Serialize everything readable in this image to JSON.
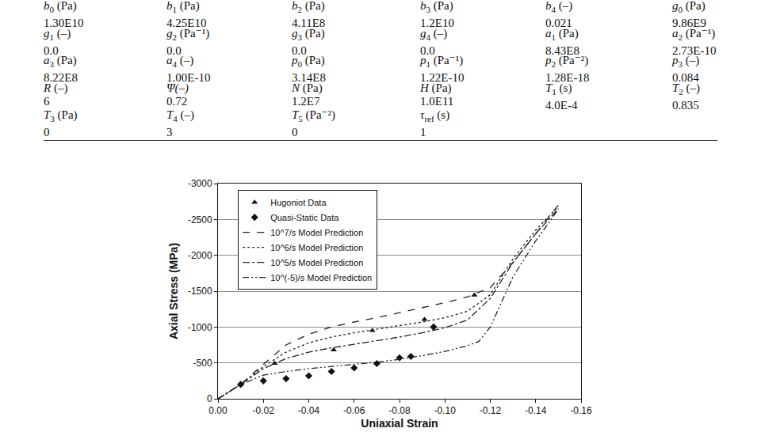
{
  "table": {
    "rows": [
      [
        {
          "sym": "b",
          "sub": "0",
          "unit": "(Pa)",
          "value": "1.30E10"
        },
        {
          "sym": "b",
          "sub": "1",
          "unit": "(Pa)",
          "value": "4.25E10"
        },
        {
          "sym": "b",
          "sub": "2",
          "unit": "(Pa)",
          "value": "4.11E8"
        },
        {
          "sym": "b",
          "sub": "3",
          "unit": "(Pa)",
          "value": "1.2E10"
        },
        {
          "sym": "b",
          "sub": "4",
          "unit": "(–)",
          "value": "0.021"
        },
        {
          "sym": "g",
          "sub": "0",
          "unit": "(Pa)",
          "value": "9.86E9"
        }
      ],
      [
        {
          "sym": "g",
          "sub": "1",
          "unit": "(–)",
          "value": "0.0"
        },
        {
          "sym": "g",
          "sub": "2",
          "unit": "(Pa⁻¹)",
          "value": "0.0"
        },
        {
          "sym": "g",
          "sub": "3",
          "unit": "(Pa)",
          "value": "0.0"
        },
        {
          "sym": "g",
          "sub": "4",
          "unit": "(–)",
          "value": "0.0"
        },
        {
          "sym": "a",
          "sub": "1",
          "unit": "(Pa)",
          "value": "8.43E8"
        },
        {
          "sym": "a",
          "sub": "2",
          "unit": "(Pa⁻¹)",
          "value": "2.73E-10"
        }
      ],
      [
        {
          "sym": "a",
          "sub": "3",
          "unit": "(Pa)",
          "value": "8.22E8"
        },
        {
          "sym": "a",
          "sub": "4",
          "unit": "(–)",
          "value": "1.00E-10"
        },
        {
          "sym": "p",
          "sub": "0",
          "unit": "(Pa)",
          "value": "3.14E8"
        },
        {
          "sym": "p",
          "sub": "1",
          "unit": "(Pa⁻¹)",
          "value": "1.22E-10"
        },
        {
          "sym": "p",
          "sub": "2",
          "unit": "(Pa⁻²)",
          "value": "1.28E-18"
        },
        {
          "sym": "p",
          "sub": "3",
          "unit": "(–)",
          "value": "0.084"
        }
      ],
      [
        {
          "sym": "R",
          "unit": "(–)",
          "value": "6"
        },
        {
          "sym": "Ψ(–)",
          "value": "0.72"
        },
        {
          "sym": "N",
          "unit": "(Pa)",
          "value": "1.2E7"
        },
        {
          "sym": "H",
          "unit": "(Pa)",
          "value": "1.0E11"
        },
        {
          "sym": "T",
          "sub": "1",
          "unit": "(s)",
          "value": "4.0E-4"
        },
        {
          "sym": "T",
          "sub": "2",
          "unit": "(–)",
          "value": "0.835"
        }
      ],
      [
        {
          "sym": "T",
          "sub": "3",
          "unit": "(Pa)",
          "value": "0"
        },
        {
          "sym": "T",
          "sub": "4",
          "unit": "(–)",
          "value": "3"
        },
        {
          "sym": "T",
          "sub": "5",
          "unit": "(Pa⁻²)",
          "value": "0"
        },
        {
          "sym": "τ",
          "sub": "ref",
          "unit": "(s)",
          "value": "1"
        }
      ]
    ]
  },
  "chart_data": {
    "type": "scatter",
    "x_label": "Uniaxial Strain",
    "y_label": "Axial Stress (MPa)",
    "xlim": [
      0,
      -0.16
    ],
    "ylim": [
      0,
      -3000
    ],
    "xticks": [
      {
        "value": 0,
        "label": "0.00"
      },
      {
        "value": -0.02,
        "label": "-0.02"
      },
      {
        "value": -0.04,
        "label": "-0.04"
      },
      {
        "value": -0.06,
        "label": "-0.06"
      },
      {
        "value": -0.08,
        "label": "-0.08"
      },
      {
        "value": -0.1,
        "label": "-0.10"
      },
      {
        "value": -0.12,
        "label": "-0.12"
      },
      {
        "value": -0.14,
        "label": "-0.14"
      },
      {
        "value": -0.16,
        "label": "-0.16"
      }
    ],
    "yticks": [
      0,
      -500,
      -1000,
      -1500,
      -2000,
      -2500,
      -3000
    ],
    "grid": true,
    "legend": "upper left",
    "series": [
      {
        "name": "Hugoniot Data",
        "type": "scatter",
        "marker": "triangle-up",
        "color": "#111111",
        "x": [
          -0.01,
          -0.025,
          -0.051,
          -0.068,
          -0.091,
          -0.113
        ],
        "values": [
          -200,
          -493,
          -680,
          -950,
          -1105,
          -1445
        ]
      },
      {
        "name": "Quasi-Static Data",
        "type": "scatter",
        "marker": "diamond",
        "color": "#111111",
        "x": [
          -0.01,
          -0.02,
          -0.03,
          -0.04,
          -0.05,
          -0.06,
          -0.07,
          -0.08,
          -0.085,
          -0.095
        ],
        "values": [
          -200,
          -250,
          -280,
          -320,
          -380,
          -430,
          -490,
          -570,
          -590,
          -1000
        ]
      },
      {
        "name": "10^7/s Model Prediction",
        "type": "line",
        "line_style": "dash",
        "color": "#222222",
        "x": [
          0,
          -0.01,
          -0.02,
          -0.03,
          -0.04,
          -0.05,
          -0.06,
          -0.07,
          -0.08,
          -0.09,
          -0.1,
          -0.11,
          -0.12,
          -0.13,
          -0.14,
          -0.15
        ],
        "values": [
          0,
          -200,
          -480,
          -750,
          -900,
          -1000,
          -1070,
          -1130,
          -1200,
          -1270,
          -1340,
          -1420,
          -1550,
          -1900,
          -2300,
          -2700
        ]
      },
      {
        "name": "10^6/s Model Prediction",
        "type": "line",
        "line_style": "dot",
        "color": "#222222",
        "x": [
          0,
          -0.01,
          -0.02,
          -0.03,
          -0.04,
          -0.05,
          -0.06,
          -0.07,
          -0.08,
          -0.09,
          -0.1,
          -0.11,
          -0.12,
          -0.13,
          -0.14,
          -0.15
        ],
        "values": [
          0,
          -200,
          -450,
          -650,
          -780,
          -860,
          -920,
          -970,
          -1020,
          -1070,
          -1130,
          -1220,
          -1450,
          -1950,
          -2350,
          -2680
        ]
      },
      {
        "name": "10^5/s Model Prediction",
        "type": "line",
        "line_style": "dashdot",
        "color": "#222222",
        "x": [
          0,
          -0.01,
          -0.02,
          -0.03,
          -0.04,
          -0.05,
          -0.06,
          -0.07,
          -0.08,
          -0.09,
          -0.1,
          -0.11,
          -0.12,
          -0.13,
          -0.14,
          -0.15
        ],
        "values": [
          0,
          -200,
          -420,
          -560,
          -650,
          -710,
          -760,
          -810,
          -860,
          -920,
          -990,
          -1100,
          -1400,
          -1900,
          -2300,
          -2650
        ]
      },
      {
        "name": "10^(-5)/s Model Prediction",
        "type": "line",
        "line_style": "dashdotdot",
        "color": "#222222",
        "x": [
          0,
          -0.01,
          -0.02,
          -0.03,
          -0.04,
          -0.05,
          -0.06,
          -0.07,
          -0.08,
          -0.09,
          -0.1,
          -0.11,
          -0.115,
          -0.12,
          -0.13,
          -0.14,
          -0.15
        ],
        "values": [
          0,
          -200,
          -330,
          -380,
          -420,
          -450,
          -480,
          -510,
          -550,
          -600,
          -660,
          -740,
          -800,
          -1000,
          -1700,
          -2200,
          -2640
        ]
      }
    ]
  }
}
